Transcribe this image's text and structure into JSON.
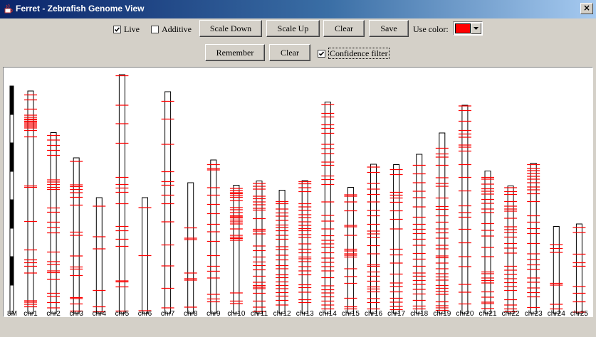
{
  "window": {
    "title": "Ferret - Zebrafish Genome View",
    "close_glyph": "×"
  },
  "toolbar": {
    "live": {
      "label": "Live",
      "checked": true
    },
    "additive": {
      "label": "Additive",
      "checked": false
    },
    "scale_down_label": "Scale Down",
    "scale_up_label": "Scale Up",
    "clear_label": "Clear",
    "save_label": "Save",
    "use_color_label": "Use color:",
    "selected_color": "#ff0000",
    "remember_label": "Remember",
    "clear2_label": "Clear",
    "confidence": {
      "label": "Confidence filter",
      "checked": true
    }
  },
  "scale_label": "8M",
  "marker_color": "#ff0000",
  "chromosomes": [
    {
      "name": "chr1",
      "length_mb": 62.6,
      "markers_mb": [
        1.1,
        2.5,
        5.1,
        6.8,
        7.4,
        7.9,
        8.1,
        8.5,
        8.8,
        9.2,
        9.6,
        10.0,
        10.4,
        11.1,
        12.9,
        26.7,
        27.1,
        36.7,
        44.7,
        47.5,
        48.3,
        49.3,
        51.2,
        59.0,
        59.4,
        60.0,
        60.7
      ]
    },
    {
      "name": "chr2",
      "length_mb": 50.9,
      "markers_mb": [
        0.8,
        2.1,
        3.6,
        5.0,
        6.4,
        13.3,
        13.9,
        14.6,
        15.4,
        16.0,
        21.2,
        22.4,
        25.2,
        26.7,
        28.2,
        33.6,
        36.3,
        37.1,
        38.9,
        39.4,
        41.3,
        45.2,
        46.1,
        47.8,
        49.3
      ]
    },
    {
      "name": "chr3",
      "length_mb": 43.8,
      "markers_mb": [
        1.0,
        7.6,
        8.1,
        8.9,
        9.8,
        11.1,
        13.3,
        20.9,
        21.8,
        27.6,
        30.7,
        31.3,
        33.1,
        39.3,
        39.6,
        41.1,
        43.1
      ]
    },
    {
      "name": "chr4",
      "length_mb": 32.6,
      "markers_mb": [
        2.4,
        11.0,
        14.4,
        26.1,
        30.7,
        32.1
      ]
    },
    {
      "name": "chr5",
      "length_mb": 67.2,
      "markers_mb": [
        0.3,
        8.6,
        13.8,
        19.3,
        28.9,
        30.9,
        31.9,
        33.1,
        36.3,
        42.7,
        43.9,
        46.3,
        48.3,
        58.0,
        58.3,
        59.7,
        66.5
      ]
    },
    {
      "name": "chr6",
      "length_mb": 32.6,
      "markers_mb": [
        2.8,
        16.3,
        31.8
      ]
    },
    {
      "name": "chr7",
      "length_mb": 62.4,
      "markers_mb": [
        2.7,
        7.7,
        14.8,
        22.5,
        25.3,
        26.3,
        29.1,
        31.5,
        36.6,
        43.1,
        49.0,
        55.3,
        60.8
      ]
    },
    {
      "name": "chr8",
      "length_mb": 36.8,
      "markers_mb": [
        12.7,
        15.6,
        16.0,
        25.4,
        27.0,
        27.4,
        35.0
      ]
    },
    {
      "name": "chr9",
      "length_mb": 43.2,
      "markers_mb": [
        1.3,
        2.4,
        2.8,
        7.8,
        9.9,
        12.5,
        15.1,
        18.1,
        20.2,
        22.9,
        26.9,
        29.9,
        31.3,
        33.2,
        37.8,
        39.1,
        39.9
      ]
    },
    {
      "name": "chr10",
      "length_mb": 36.1,
      "markers_mb": [
        0.9,
        1.5,
        2.1,
        2.4,
        2.9,
        3.4,
        4.3,
        6.3,
        6.9,
        7.7,
        8.6,
        8.9,
        9.2,
        9.8,
        10.3,
        10.9,
        12.3,
        14.1,
        14.6,
        15.0,
        15.5,
        30.3,
        32.6,
        33.3
      ]
    },
    {
      "name": "chr11",
      "length_mb": 37.3,
      "markers_mb": [
        0.7,
        1.5,
        2.3,
        4.3,
        5.0,
        5.9,
        6.7,
        7.7,
        8.2,
        10.6,
        13.6,
        14.1,
        14.9,
        18.3,
        19.6,
        21.4,
        22.8,
        23.8,
        25.0,
        26.8,
        28.5,
        29.4,
        29.9,
        30.3,
        31.6,
        33.8,
        35.5,
        36.7
      ]
    },
    {
      "name": "chr12",
      "length_mb": 34.7,
      "markers_mb": [
        3.2,
        3.8,
        5.3,
        6.4,
        7.3,
        8.5,
        9.8,
        10.5,
        11.4,
        12.7,
        13.8,
        15.9,
        16.7,
        18.3,
        19.6,
        21.2,
        22.1,
        23.8,
        24.6,
        25.8,
        26.8,
        27.7,
        28.8,
        29.8,
        31.0,
        32.3
      ]
    },
    {
      "name": "chr13",
      "length_mb": 37.4,
      "markers_mb": [
        0.3,
        0.9,
        2.0,
        3.1,
        6.5,
        7.4,
        8.4,
        9.6,
        10.4,
        11.6,
        12.6,
        13.5,
        14.1,
        15.2,
        16.0,
        17.8,
        19.3,
        20.3,
        21.5,
        22.0,
        22.8,
        24.2,
        25.4,
        26.5,
        29.3,
        30.1,
        31.4,
        33.5,
        34.3
      ]
    },
    {
      "name": "chr14",
      "length_mb": 59.5,
      "markers_mb": [
        0.7,
        3.2,
        4.2,
        6.4,
        7.4,
        8.8,
        11.9,
        13.1,
        14.5,
        16.9,
        17.8,
        20.8,
        21.8,
        23.2,
        28.1,
        31.9,
        33.5,
        35.7,
        37.6,
        38.9,
        39.9,
        40.9,
        42.4,
        43.9,
        45.1,
        46.3,
        47.5,
        49.4,
        51.7,
        52.8,
        53.7,
        54.8,
        56.0,
        57.1,
        58.2
      ]
    },
    {
      "name": "chr15",
      "length_mb": 35.5,
      "markers_mb": [
        2.1,
        2.5,
        4.1,
        6.6,
        10.7,
        11.1,
        13.5,
        17.4,
        17.9,
        18.7,
        19.1,
        19.6,
        22.9,
        25.1,
        27.0,
        31.2,
        33.6,
        34.2
      ]
    },
    {
      "name": "chr16",
      "length_mb": 42.0,
      "markers_mb": [
        0.8,
        2.3,
        5.4,
        7.0,
        8.5,
        10.6,
        13.0,
        14.5,
        16.9,
        18.8,
        19.6,
        20.6,
        22.9,
        25.2,
        28.3,
        28.7,
        30.3,
        31.5,
        32.9,
        34.5,
        35.1,
        35.9,
        37.8,
        38.9,
        40.7
      ]
    },
    {
      "name": "chr17",
      "length_mb": 41.9,
      "markers_mb": [
        1.4,
        2.8,
        7.8,
        8.6,
        9.4,
        10.6,
        13.0,
        15.4,
        18.1,
        23.8,
        25.4,
        27.7,
        30.8,
        33.3,
        34.3,
        35.8,
        37.6,
        38.7,
        39.9,
        40.8
      ]
    },
    {
      "name": "chr18",
      "length_mb": 44.8,
      "markers_mb": [
        3.1,
        5.5,
        8.0,
        10.4,
        12.2,
        14.8,
        17.7,
        19.7,
        21.1,
        22.3,
        23.9,
        25.6,
        27.9,
        29.5,
        31.5,
        33.4,
        34.3,
        35.5,
        36.6,
        38.0,
        39.3,
        41.1,
        42.7,
        43.5
      ]
    },
    {
      "name": "chr19",
      "length_mb": 50.8,
      "markers_mb": [
        4.3,
        5.9,
        6.8,
        9.1,
        12.6,
        14.2,
        15.0,
        18.3,
        20.7,
        21.5,
        23.3,
        25.1,
        27.0,
        28.1,
        29.6,
        31.6,
        32.6,
        34.6,
        35.1,
        36.6,
        38.2,
        39.6,
        40.5,
        41.4,
        42.9,
        43.7,
        44.6,
        45.4,
        47.5,
        48.6,
        49.2,
        49.9
      ]
    },
    {
      "name": "chr20",
      "length_mb": 58.6,
      "markers_mb": [
        0.2,
        1.5,
        4.5,
        7.1,
        8.1,
        9.0,
        11.2,
        11.8,
        12.9,
        16.7,
        20.3,
        24.1,
        28.3,
        30.2,
        31.5,
        34.9,
        38.7,
        42.6,
        45.4,
        50.4,
        52.6,
        55.9
      ]
    },
    {
      "name": "chr21",
      "length_mb": 40.1,
      "markers_mb": [
        1.8,
        2.3,
        3.7,
        5.0,
        5.7,
        6.5,
        8.0,
        9.1,
        10.7,
        11.7,
        14.8,
        16.7,
        18.3,
        21.5,
        24.1,
        28.4,
        28.9,
        30.1,
        30.8,
        31.5,
        34.0,
        35.5,
        36.9,
        37.3,
        38.7
      ]
    },
    {
      "name": "chr22",
      "length_mb": 35.9,
      "markers_mb": [
        0.5,
        1.6,
        2.4,
        4.4,
        5.7,
        6.5,
        7.1,
        9.1,
        11.5,
        12.3,
        13.1,
        14.4,
        16.2,
        17.5,
        18.9,
        22.6,
        23.7,
        24.9,
        26.1,
        27.2,
        28.3,
        29.4,
        32.0,
        33.5,
        34.6,
        35.4
      ]
    },
    {
      "name": "chr23",
      "length_mb": 42.3,
      "markers_mb": [
        0.4,
        1.5,
        2.1,
        2.9,
        3.7,
        4.5,
        5.5,
        6.7,
        7.5,
        8.6,
        10.8,
        14.8,
        16.6,
        18.4,
        19.8,
        22.6,
        25.5,
        27.1,
        28.6,
        29.9,
        32.3,
        33.5,
        35.1,
        36.4,
        37.6,
        40.6
      ]
    },
    {
      "name": "chr24",
      "length_mb": 24.5,
      "markers_mb": [
        5.1,
        6.2,
        7.3,
        16.0,
        16.5,
        21.9,
        23.2
      ]
    },
    {
      "name": "chr25",
      "length_mb": 25.2,
      "markers_mb": [
        1.0,
        2.4,
        8.5,
        10.9,
        11.9,
        17.6,
        19.5,
        21.9,
        24.8
      ]
    }
  ]
}
